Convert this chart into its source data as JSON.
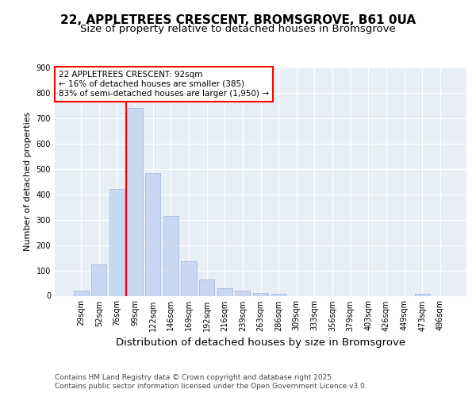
{
  "title": "22, APPLETREES CRESCENT, BROMSGROVE, B61 0UA",
  "subtitle": "Size of property relative to detached houses in Bromsgrove",
  "xlabel": "Distribution of detached houses by size in Bromsgrove",
  "ylabel": "Number of detached properties",
  "footer_line1": "Contains HM Land Registry data © Crown copyright and database right 2025.",
  "footer_line2": "Contains public sector information licensed under the Open Government Licence v3.0.",
  "bar_labels": [
    "29sqm",
    "52sqm",
    "76sqm",
    "99sqm",
    "122sqm",
    "146sqm",
    "169sqm",
    "192sqm",
    "216sqm",
    "239sqm",
    "263sqm",
    "286sqm",
    "309sqm",
    "333sqm",
    "356sqm",
    "379sqm",
    "403sqm",
    "426sqm",
    "449sqm",
    "473sqm",
    "496sqm"
  ],
  "bar_values": [
    20,
    125,
    420,
    740,
    485,
    315,
    135,
    65,
    30,
    20,
    10,
    7,
    0,
    0,
    0,
    0,
    0,
    0,
    0,
    8,
    0
  ],
  "bar_color": "#c8d8f0",
  "bar_edgecolor": "#a0b8d8",
  "vline_color": "red",
  "vline_x": 2.5,
  "annotation_text": "22 APPLETREES CRESCENT: 92sqm\n← 16% of detached houses are smaller (385)\n83% of semi-detached houses are larger (1,950) →",
  "annotation_box_facecolor": "white",
  "annotation_box_edgecolor": "red",
  "ylim": [
    0,
    900
  ],
  "yticks": [
    0,
    100,
    200,
    300,
    400,
    500,
    600,
    700,
    800,
    900
  ],
  "plot_bg_color": "#e8eef8",
  "fig_bg_color": "#ffffff",
  "grid_color": "#ffffff",
  "title_fontsize": 11,
  "subtitle_fontsize": 9.5,
  "xlabel_fontsize": 9.5,
  "ylabel_fontsize": 8,
  "tick_fontsize": 7,
  "annotation_fontsize": 7.5,
  "footer_fontsize": 6.5
}
